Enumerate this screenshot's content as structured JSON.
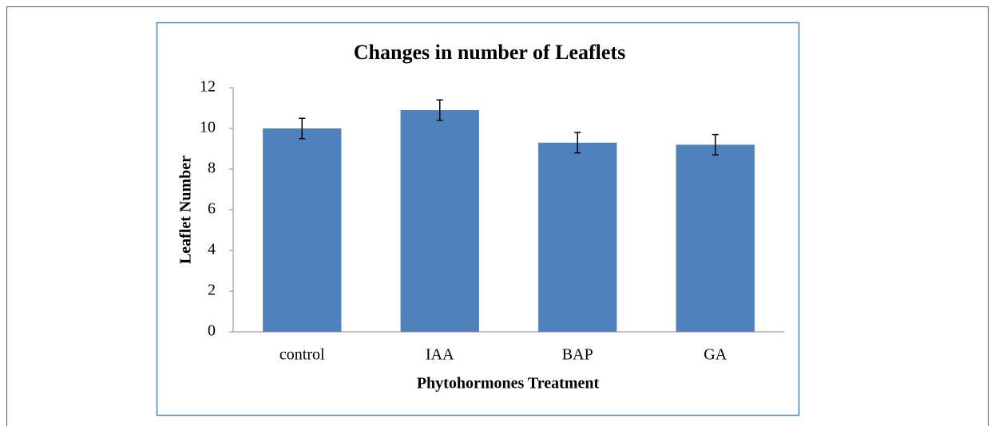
{
  "chart_data": {
    "type": "bar",
    "title": "Changes in number of Leaflets",
    "x_label": "Phytohormones Treatment",
    "y_label": "Leaflet Number",
    "categories": [
      "control",
      "IAA",
      "BAP",
      "GA"
    ],
    "values": [
      10,
      10.9,
      9.3,
      9.2
    ],
    "errors": [
      0.5,
      0.5,
      0.5,
      0.5
    ],
    "color": "#4f81bd",
    "ylim": [
      0,
      12
    ],
    "yticks": [
      0,
      2,
      4,
      6,
      8,
      10,
      12
    ],
    "grid": false
  }
}
